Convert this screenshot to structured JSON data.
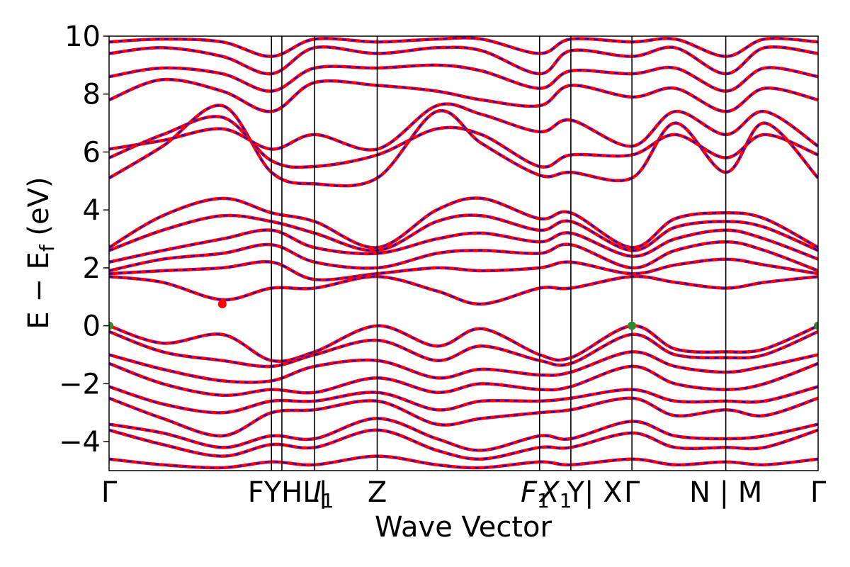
{
  "chart_data": {
    "type": "line",
    "title": "",
    "xlabel": "Wave Vector",
    "ylabel": "E − E",
    "ylabel_sub": "f",
    "ylabel_unit": " (eV)",
    "ylim": [
      -5,
      10
    ],
    "yticks": [
      -4,
      -2,
      0,
      2,
      4,
      6,
      8,
      10
    ],
    "ytick_labels": [
      "−4",
      "−2",
      "0",
      "2",
      "4",
      "6",
      "8",
      "10"
    ],
    "k_path_length": 2.38,
    "high_symmetry_points": [
      {
        "k": 0.0,
        "label": "Γ"
      },
      {
        "k": 0.545,
        "label": "Y"
      },
      {
        "k": 0.58,
        "label": "F"
      },
      {
        "k": 0.57,
        "label": "H"
      },
      {
        "k": 0.63,
        "label": "|"
      },
      {
        "k": 0.69,
        "label": "L"
      },
      {
        "k": 0.69,
        "label": "I"
      },
      {
        "k": 0.9,
        "label": "Z"
      },
      {
        "k": 1.445,
        "label": "F"
      },
      {
        "k": 1.48,
        "label": "X"
      },
      {
        "k": 1.51,
        "label": "|"
      },
      {
        "k": 1.55,
        "label": "Y"
      },
      {
        "k": 1.6,
        "label": "|"
      },
      {
        "k": 1.65,
        "label": "X"
      },
      {
        "k": 1.755,
        "label": "Γ"
      },
      {
        "k": 2.07,
        "label": "N"
      },
      {
        "k": 2.07,
        "label": "|"
      },
      {
        "k": 2.07,
        "label": "M"
      },
      {
        "k": 2.38,
        "label": "Γ"
      }
    ],
    "tick_label_items": [
      {
        "text": "Γ",
        "k": 0.0
      },
      {
        "text": "FYHL|",
        "k": 0.6
      },
      {
        "text": "I",
        "sub": "1",
        "k": 0.72
      },
      {
        "text": "Z",
        "k": 0.9
      },
      {
        "text": "F",
        "sub": "1",
        "k": 1.43
      },
      {
        "text": "X",
        "sub": "1",
        "k": 1.5
      },
      {
        "text": "Y| X",
        "k": 1.63
      },
      {
        "text": "Γ",
        "k": 1.755
      },
      {
        "text": "N | M",
        "k": 2.07
      },
      {
        "text": "Γ",
        "k": 2.38
      }
    ],
    "vertical_lines_k": [
      0.545,
      0.58,
      0.69,
      0.9,
      1.445,
      1.55,
      1.755,
      2.07
    ],
    "series": [
      {
        "color": "#ff0000",
        "style": "solid"
      },
      {
        "color": "#0000ff",
        "style": "dashed"
      }
    ],
    "markers": [
      {
        "k": 0.0,
        "E": 0.0,
        "color": "#2e8b2e"
      },
      {
        "k": 1.755,
        "E": 0.0,
        "color": "#2e8b2e"
      },
      {
        "k": 2.38,
        "E": 0.0,
        "color": "#2e8b2e"
      },
      {
        "k": 0.38,
        "E": 0.75,
        "color": "#ff0000"
      }
    ],
    "bands": [
      {
        "k": [
          0,
          0.18,
          0.38,
          0.545,
          0.69,
          0.9,
          1.1,
          1.25,
          1.445,
          1.55,
          1.755,
          1.9,
          2.07,
          2.2,
          2.38
        ],
        "E": [
          5.1,
          6.2,
          7.6,
          5.3,
          4.9,
          5.1,
          7.4,
          6.3,
          5.2,
          5.3,
          5.1,
          7.0,
          5.3,
          7.0,
          5.1
        ]
      },
      {
        "k": [
          0,
          0.18,
          0.38,
          0.545,
          0.69,
          0.9,
          1.1,
          1.25,
          1.445,
          1.55,
          1.755,
          1.9,
          2.07,
          2.2,
          2.38
        ],
        "E": [
          5.8,
          6.6,
          7.2,
          5.7,
          5.5,
          5.9,
          6.8,
          6.6,
          5.5,
          5.9,
          5.9,
          6.6,
          5.8,
          6.6,
          5.9
        ]
      },
      {
        "k": [
          0,
          0.18,
          0.38,
          0.545,
          0.69,
          0.9,
          1.1,
          1.25,
          1.445,
          1.55,
          1.755,
          1.9,
          2.07,
          2.2,
          2.38
        ],
        "E": [
          6.1,
          6.4,
          6.8,
          6.1,
          6.6,
          6.1,
          7.6,
          7.3,
          6.7,
          7.1,
          6.2,
          7.4,
          6.6,
          7.4,
          6.2
        ]
      },
      {
        "k": [
          0,
          0.18,
          0.38,
          0.545,
          0.69,
          0.9,
          1.1,
          1.25,
          1.445,
          1.55,
          1.755,
          1.9,
          2.07,
          2.2,
          2.38
        ],
        "E": [
          7.8,
          8.5,
          8.1,
          7.4,
          8.4,
          8.3,
          8.1,
          7.8,
          7.6,
          8.3,
          7.9,
          8.2,
          7.4,
          8.2,
          7.8
        ]
      },
      {
        "k": [
          0,
          0.18,
          0.38,
          0.545,
          0.69,
          0.9,
          1.1,
          1.25,
          1.445,
          1.55,
          1.755,
          1.9,
          2.07,
          2.2,
          2.38
        ],
        "E": [
          8.6,
          8.9,
          8.7,
          8.1,
          8.9,
          8.9,
          9.0,
          8.8,
          8.2,
          8.8,
          8.7,
          8.9,
          8.1,
          8.9,
          8.6
        ]
      },
      {
        "k": [
          0,
          0.18,
          0.38,
          0.545,
          0.69,
          0.9,
          1.1,
          1.25,
          1.445,
          1.55,
          1.755,
          1.9,
          2.07,
          2.2,
          2.38
        ],
        "E": [
          9.4,
          9.6,
          9.3,
          8.7,
          9.6,
          9.4,
          9.6,
          9.5,
          8.7,
          9.5,
          9.3,
          9.6,
          8.7,
          9.6,
          9.4
        ]
      },
      {
        "k": [
          0,
          0.18,
          0.38,
          0.545,
          0.69,
          0.9,
          1.1,
          1.25,
          1.445,
          1.55,
          1.755,
          1.9,
          2.07,
          2.2,
          2.38
        ],
        "E": [
          9.8,
          9.9,
          9.8,
          9.3,
          9.9,
          9.8,
          9.9,
          9.9,
          9.4,
          9.9,
          9.8,
          9.9,
          9.3,
          9.9,
          9.8
        ]
      },
      {
        "k": [
          0,
          0.18,
          0.38,
          0.545,
          0.69,
          0.9,
          1.1,
          1.25,
          1.445,
          1.55,
          1.755,
          1.9,
          2.07,
          2.2,
          2.38
        ],
        "E": [
          2.7,
          3.8,
          4.4,
          3.9,
          3.6,
          2.7,
          4.0,
          4.4,
          3.7,
          3.9,
          2.7,
          3.7,
          3.9,
          3.7,
          2.7
        ]
      },
      {
        "k": [
          0,
          0.18,
          0.38,
          0.545,
          0.69,
          0.9,
          1.1,
          1.25,
          1.445,
          1.55,
          1.755,
          1.9,
          2.07,
          2.2,
          2.38
        ],
        "E": [
          2.6,
          3.3,
          3.8,
          3.6,
          3.2,
          2.6,
          3.6,
          3.8,
          3.3,
          3.6,
          2.6,
          3.4,
          3.6,
          3.4,
          2.6
        ]
      },
      {
        "k": [
          0,
          0.18,
          0.38,
          0.545,
          0.69,
          0.9,
          1.1,
          1.25,
          1.445,
          1.55,
          1.755,
          1.9,
          2.07,
          2.2,
          2.38
        ],
        "E": [
          2.2,
          2.6,
          3.0,
          3.3,
          2.7,
          2.5,
          3.0,
          3.2,
          2.9,
          3.2,
          2.4,
          3.0,
          3.3,
          3.0,
          2.3
        ]
      },
      {
        "k": [
          0,
          0.18,
          0.38,
          0.545,
          0.69,
          0.9,
          1.1,
          1.25,
          1.445,
          1.55,
          1.755,
          1.9,
          2.07,
          2.2,
          2.38
        ],
        "E": [
          1.9,
          2.3,
          2.5,
          2.8,
          2.2,
          2.0,
          2.5,
          2.6,
          2.5,
          2.8,
          2.0,
          2.6,
          2.9,
          2.6,
          1.9
        ]
      },
      {
        "k": [
          0,
          0.18,
          0.38,
          0.545,
          0.69,
          0.9,
          1.1,
          1.25,
          1.445,
          1.55,
          1.755,
          1.9,
          2.07,
          2.2,
          2.38
        ],
        "E": [
          1.8,
          1.9,
          2.0,
          2.2,
          1.6,
          1.8,
          2.0,
          1.9,
          2.0,
          2.2,
          1.8,
          2.1,
          2.3,
          2.1,
          1.8
        ]
      },
      {
        "k": [
          0,
          0.18,
          0.38,
          0.545,
          0.69,
          0.9,
          1.1,
          1.25,
          1.445,
          1.55,
          1.755,
          1.9,
          2.07,
          2.2,
          2.38
        ],
        "E": [
          1.7,
          1.5,
          0.9,
          1.3,
          1.3,
          1.7,
          1.2,
          0.75,
          1.3,
          1.3,
          1.7,
          1.5,
          1.3,
          1.5,
          1.7
        ]
      },
      {
        "k": [
          0,
          0.18,
          0.38,
          0.545,
          0.69,
          0.9,
          1.1,
          1.25,
          1.445,
          1.55,
          1.755,
          1.9,
          2.07,
          2.2,
          2.38
        ],
        "E": [
          0.0,
          -0.6,
          -0.3,
          -1.2,
          -0.9,
          0.0,
          -0.7,
          -0.1,
          -1.0,
          -1.1,
          0.0,
          -0.8,
          -0.9,
          -0.8,
          0.0
        ]
      },
      {
        "k": [
          0,
          0.18,
          0.38,
          0.545,
          0.69,
          0.9,
          1.1,
          1.25,
          1.445,
          1.55,
          1.755,
          1.9,
          2.07,
          2.2,
          2.38
        ],
        "E": [
          -0.2,
          -0.9,
          -1.2,
          -1.4,
          -1.0,
          -0.5,
          -1.2,
          -0.7,
          -1.2,
          -1.3,
          -0.3,
          -1.0,
          -1.1,
          -1.0,
          -0.2
        ]
      },
      {
        "k": [
          0,
          0.18,
          0.38,
          0.545,
          0.69,
          0.9,
          1.1,
          1.25,
          1.445,
          1.55,
          1.755,
          1.9,
          2.07,
          2.2,
          2.38
        ],
        "E": [
          -1.0,
          -1.5,
          -1.9,
          -1.9,
          -1.4,
          -1.2,
          -1.8,
          -1.5,
          -1.7,
          -1.6,
          -0.9,
          -1.4,
          -1.6,
          -1.4,
          -1.0
        ]
      },
      {
        "k": [
          0,
          0.18,
          0.38,
          0.545,
          0.69,
          0.9,
          1.1,
          1.25,
          1.445,
          1.55,
          1.755,
          1.9,
          2.07,
          2.2,
          2.38
        ],
        "E": [
          -1.3,
          -2.0,
          -2.4,
          -2.2,
          -2.3,
          -1.8,
          -2.3,
          -2.0,
          -2.2,
          -2.1,
          -1.4,
          -2.0,
          -2.2,
          -2.0,
          -1.3
        ]
      },
      {
        "k": [
          0,
          0.18,
          0.38,
          0.545,
          0.69,
          0.9,
          1.1,
          1.25,
          1.445,
          1.55,
          1.755,
          1.9,
          2.07,
          2.2,
          2.38
        ],
        "E": [
          -2.1,
          -2.7,
          -3.0,
          -2.6,
          -2.6,
          -2.3,
          -2.9,
          -2.6,
          -2.6,
          -2.5,
          -2.2,
          -2.6,
          -2.6,
          -2.6,
          -2.1
        ]
      },
      {
        "k": [
          0,
          0.18,
          0.38,
          0.545,
          0.69,
          0.9,
          1.1,
          1.25,
          1.445,
          1.55,
          1.755,
          1.9,
          2.07,
          2.2,
          2.38
        ],
        "E": [
          -2.5,
          -3.2,
          -3.8,
          -3.0,
          -2.9,
          -2.6,
          -3.4,
          -3.2,
          -3.0,
          -2.9,
          -2.5,
          -3.1,
          -2.9,
          -3.1,
          -2.5
        ]
      },
      {
        "k": [
          0,
          0.18,
          0.38,
          0.545,
          0.69,
          0.9,
          1.1,
          1.25,
          1.445,
          1.55,
          1.755,
          1.9,
          2.07,
          2.2,
          2.38
        ],
        "E": [
          -3.4,
          -3.7,
          -4.2,
          -3.8,
          -3.9,
          -3.2,
          -3.9,
          -4.3,
          -3.8,
          -3.9,
          -3.3,
          -3.8,
          -3.9,
          -3.8,
          -3.4
        ]
      },
      {
        "k": [
          0,
          0.18,
          0.38,
          0.545,
          0.69,
          0.9,
          1.1,
          1.25,
          1.445,
          1.55,
          1.755,
          1.9,
          2.07,
          2.2,
          2.38
        ],
        "E": [
          -3.6,
          -4.1,
          -4.5,
          -4.1,
          -4.2,
          -3.6,
          -4.3,
          -4.6,
          -4.2,
          -4.2,
          -3.7,
          -4.2,
          -4.2,
          -4.2,
          -3.6
        ]
      },
      {
        "k": [
          0,
          0.18,
          0.38,
          0.545,
          0.69,
          0.9,
          1.1,
          1.25,
          1.445,
          1.55,
          1.755,
          1.9,
          2.07,
          2.2,
          2.38
        ],
        "E": [
          -4.6,
          -4.8,
          -4.9,
          -4.7,
          -4.8,
          -4.5,
          -4.8,
          -4.9,
          -4.7,
          -4.8,
          -4.6,
          -4.8,
          -4.7,
          -4.8,
          -4.6
        ]
      }
    ]
  }
}
